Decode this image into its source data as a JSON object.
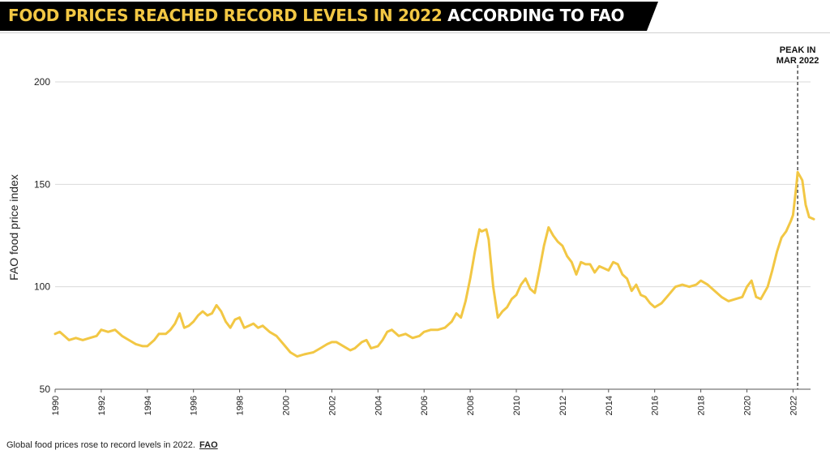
{
  "title": {
    "highlight": "FOOD PRICES REACHED RECORD LEVELS IN 2022",
    "rest": "ACCORDING TO FAO"
  },
  "caption": {
    "text": "Global food prices rose to record levels in 2022.",
    "source": "FAO"
  },
  "colors": {
    "line": "#f2c744",
    "title_bg": "#000000",
    "title_highlight": "#f2c744",
    "grid": "#d9d9d9"
  },
  "chart_data": {
    "type": "line",
    "ylabel": "FAO food price index",
    "xlabel": "",
    "xlim": [
      1990,
      2023.1
    ],
    "ylim": [
      50,
      200
    ],
    "yticks": [
      50,
      100,
      150,
      200
    ],
    "xticks": [
      "1990",
      "1992",
      "1994",
      "1996",
      "1998",
      "2000",
      "2002",
      "2004",
      "2006",
      "2008",
      "2010",
      "2012",
      "2014",
      "2016",
      "2018",
      "2020",
      "2022"
    ],
    "grid": "horizontal",
    "annotation": {
      "line1": "PEAK IN",
      "line2": "MAR 2022",
      "x": 2022.2
    },
    "series": [
      {
        "name": "",
        "points": [
          [
            1990.0,
            77
          ],
          [
            1990.2,
            78
          ],
          [
            1990.4,
            76
          ],
          [
            1990.6,
            74
          ],
          [
            1990.9,
            75
          ],
          [
            1991.2,
            74
          ],
          [
            1991.5,
            75
          ],
          [
            1991.8,
            76
          ],
          [
            1992.0,
            79
          ],
          [
            1992.3,
            78
          ],
          [
            1992.6,
            79
          ],
          [
            1992.9,
            76
          ],
          [
            1993.2,
            74
          ],
          [
            1993.5,
            72
          ],
          [
            1993.8,
            71
          ],
          [
            1994.0,
            71
          ],
          [
            1994.3,
            74
          ],
          [
            1994.5,
            77
          ],
          [
            1994.8,
            77
          ],
          [
            1995.0,
            79
          ],
          [
            1995.2,
            82
          ],
          [
            1995.4,
            87
          ],
          [
            1995.6,
            80
          ],
          [
            1995.8,
            81
          ],
          [
            1996.0,
            83
          ],
          [
            1996.2,
            86
          ],
          [
            1996.4,
            88
          ],
          [
            1996.6,
            86
          ],
          [
            1996.8,
            87
          ],
          [
            1997.0,
            91
          ],
          [
            1997.2,
            88
          ],
          [
            1997.4,
            83
          ],
          [
            1997.6,
            80
          ],
          [
            1997.8,
            84
          ],
          [
            1998.0,
            85
          ],
          [
            1998.2,
            80
          ],
          [
            1998.4,
            81
          ],
          [
            1998.6,
            82
          ],
          [
            1998.8,
            80
          ],
          [
            1999.0,
            81
          ],
          [
            1999.3,
            78
          ],
          [
            1999.6,
            76
          ],
          [
            1999.9,
            72
          ],
          [
            2000.2,
            68
          ],
          [
            2000.5,
            66
          ],
          [
            2000.8,
            67
          ],
          [
            2001.2,
            68
          ],
          [
            2001.5,
            70
          ],
          [
            2001.8,
            72
          ],
          [
            2002.0,
            73
          ],
          [
            2002.2,
            73
          ],
          [
            2002.5,
            71
          ],
          [
            2002.8,
            69
          ],
          [
            2003.0,
            70
          ],
          [
            2003.3,
            73
          ],
          [
            2003.5,
            74
          ],
          [
            2003.7,
            70
          ],
          [
            2004.0,
            71
          ],
          [
            2004.2,
            74
          ],
          [
            2004.4,
            78
          ],
          [
            2004.6,
            79
          ],
          [
            2004.9,
            76
          ],
          [
            2005.2,
            77
          ],
          [
            2005.5,
            75
          ],
          [
            2005.8,
            76
          ],
          [
            2006.0,
            78
          ],
          [
            2006.3,
            79
          ],
          [
            2006.6,
            79
          ],
          [
            2006.9,
            80
          ],
          [
            2007.2,
            83
          ],
          [
            2007.4,
            87
          ],
          [
            2007.6,
            85
          ],
          [
            2007.8,
            93
          ],
          [
            2008.0,
            104
          ],
          [
            2008.2,
            117
          ],
          [
            2008.4,
            128
          ],
          [
            2008.5,
            127
          ],
          [
            2008.7,
            128
          ],
          [
            2008.8,
            123
          ],
          [
            2009.0,
            100
          ],
          [
            2009.2,
            85
          ],
          [
            2009.4,
            88
          ],
          [
            2009.6,
            90
          ],
          [
            2009.8,
            94
          ],
          [
            2010.0,
            96
          ],
          [
            2010.2,
            101
          ],
          [
            2010.4,
            104
          ],
          [
            2010.6,
            99
          ],
          [
            2010.8,
            97
          ],
          [
            2011.0,
            108
          ],
          [
            2011.2,
            120
          ],
          [
            2011.4,
            129
          ],
          [
            2011.6,
            125
          ],
          [
            2011.8,
            122
          ],
          [
            2012.0,
            120
          ],
          [
            2012.2,
            115
          ],
          [
            2012.4,
            112
          ],
          [
            2012.6,
            106
          ],
          [
            2012.8,
            112
          ],
          [
            2013.0,
            111
          ],
          [
            2013.2,
            111
          ],
          [
            2013.4,
            107
          ],
          [
            2013.6,
            110
          ],
          [
            2013.8,
            109
          ],
          [
            2014.0,
            108
          ],
          [
            2014.2,
            112
          ],
          [
            2014.4,
            111
          ],
          [
            2014.6,
            106
          ],
          [
            2014.8,
            104
          ],
          [
            2015.0,
            98
          ],
          [
            2015.2,
            101
          ],
          [
            2015.4,
            96
          ],
          [
            2015.6,
            95
          ],
          [
            2015.8,
            92
          ],
          [
            2016.0,
            90
          ],
          [
            2016.3,
            92
          ],
          [
            2016.6,
            96
          ],
          [
            2016.9,
            100
          ],
          [
            2017.2,
            101
          ],
          [
            2017.5,
            100
          ],
          [
            2017.8,
            101
          ],
          [
            2018.0,
            103
          ],
          [
            2018.3,
            101
          ],
          [
            2018.6,
            98
          ],
          [
            2018.9,
            95
          ],
          [
            2019.2,
            93
          ],
          [
            2019.5,
            94
          ],
          [
            2019.8,
            95
          ],
          [
            2020.0,
            100
          ],
          [
            2020.2,
            103
          ],
          [
            2020.4,
            95
          ],
          [
            2020.6,
            94
          ],
          [
            2020.9,
            100
          ],
          [
            2021.1,
            108
          ],
          [
            2021.3,
            117
          ],
          [
            2021.5,
            124
          ],
          [
            2021.7,
            127
          ],
          [
            2021.9,
            132
          ],
          [
            2022.0,
            135
          ],
          [
            2022.15,
            150
          ],
          [
            2022.2,
            156
          ],
          [
            2022.4,
            152
          ],
          [
            2022.55,
            140
          ],
          [
            2022.7,
            134
          ],
          [
            2022.9,
            133
          ]
        ]
      }
    ]
  }
}
